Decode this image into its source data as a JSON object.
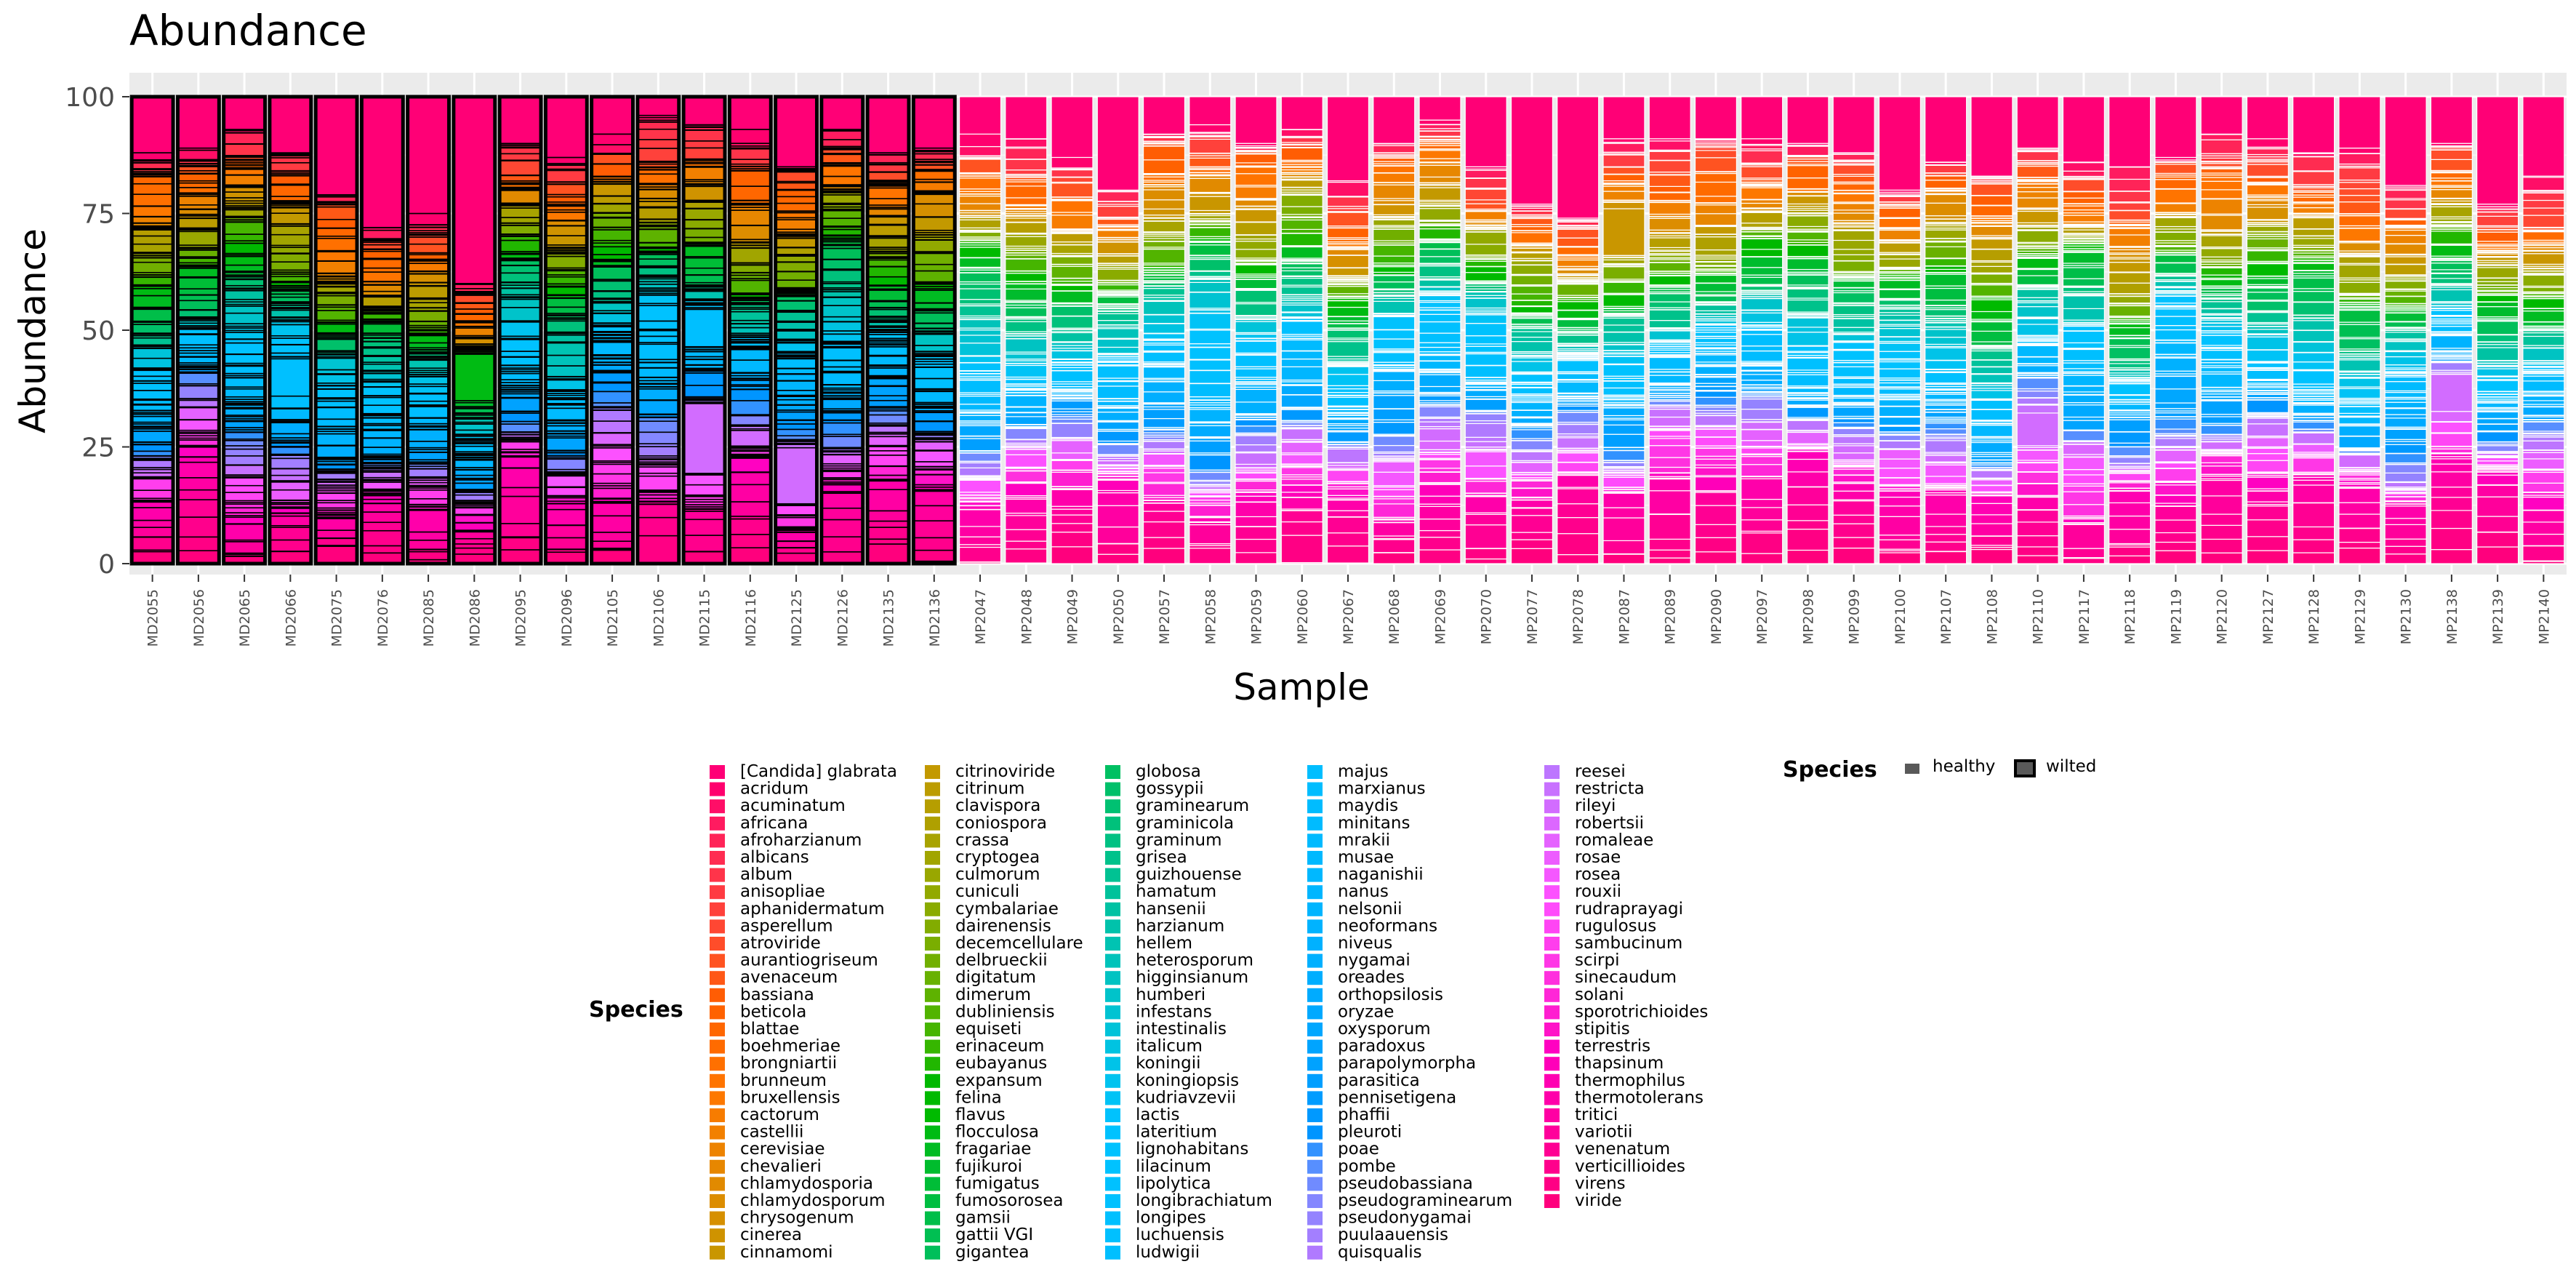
{
  "chart_data": {
    "type": "bar",
    "stacked": true,
    "title": "Abundance",
    "xlabel": "Sample",
    "ylabel": "Abundance",
    "ylim": [
      0,
      100
    ],
    "yticks": [
      0,
      25,
      50,
      75,
      100
    ],
    "grid": true,
    "legend_placement": "bottom",
    "categories": [
      "MD2055",
      "MD2056",
      "MD2065",
      "MD2066",
      "MD2075",
      "MD2076",
      "MD2085",
      "MD2086",
      "MD2095",
      "MD2096",
      "MD2105",
      "MD2106",
      "MD2115",
      "MD2116",
      "MD2125",
      "MD2126",
      "MD2135",
      "MD2136",
      "MP2047",
      "MP2048",
      "MP2049",
      "MP2050",
      "MP2057",
      "MP2058",
      "MP2059",
      "MP2060",
      "MP2067",
      "MP2068",
      "MP2069",
      "MP2070",
      "MP2077",
      "MP2078",
      "MP2087",
      "MP2089",
      "MP2090",
      "MP2097",
      "MP2098",
      "MP2099",
      "MP2100",
      "MP2107",
      "MP2108",
      "MP2110",
      "MP2117",
      "MP2118",
      "MP2119",
      "MP2120",
      "MP2127",
      "MP2128",
      "MP2129",
      "MP2130",
      "MP2138",
      "MP2139",
      "MP2140"
    ],
    "status": [
      "wilted",
      "wilted",
      "wilted",
      "wilted",
      "wilted",
      "wilted",
      "wilted",
      "wilted",
      "wilted",
      "wilted",
      "wilted",
      "wilted",
      "wilted",
      "wilted",
      "wilted",
      "wilted",
      "wilted",
      "wilted",
      "healthy",
      "healthy",
      "healthy",
      "healthy",
      "healthy",
      "healthy",
      "healthy",
      "healthy",
      "healthy",
      "healthy",
      "healthy",
      "healthy",
      "healthy",
      "healthy",
      "healthy",
      "healthy",
      "healthy",
      "healthy",
      "healthy",
      "healthy",
      "healthy",
      "healthy",
      "healthy",
      "healthy",
      "healthy",
      "healthy",
      "healthy",
      "healthy",
      "healthy",
      "healthy",
      "healthy",
      "healthy",
      "healthy",
      "healthy",
      "healthy"
    ],
    "top_species": "[Candida] glabrata",
    "top_species_values": [
      12,
      11,
      7,
      12,
      21,
      28,
      25,
      40,
      10,
      13,
      8,
      4,
      6,
      7,
      15,
      7,
      12,
      11,
      8,
      9,
      13,
      20,
      8,
      6,
      10,
      7,
      18,
      10,
      5,
      15,
      23,
      26,
      9,
      9,
      9,
      9,
      10,
      12,
      20,
      14,
      17,
      11,
      14,
      15,
      13,
      8,
      9,
      12,
      11,
      19,
      10,
      23,
      17
    ],
    "notable_blocks": [
      {
        "sample": "MD2086",
        "species": "flocculosa",
        "value": 10
      },
      {
        "sample": "MD2115",
        "species": "ludwigii",
        "value": 8
      },
      {
        "sample": "MD2115",
        "species": "rileyi",
        "value": 15
      },
      {
        "sample": "MD2125",
        "species": "rileyi",
        "value": 12
      },
      {
        "sample": "MD2066",
        "species": "luchuensis",
        "value": 8
      },
      {
        "sample": "MP2087",
        "species": "cinnamomi",
        "value": 10
      },
      {
        "sample": "MP2110",
        "species": "rileyi",
        "value": 7
      },
      {
        "sample": "MP2138",
        "species": "rileyi",
        "value": 8
      }
    ],
    "species": [
      "[Candida] glabrata",
      "acridum",
      "acuminatum",
      "africana",
      "afroharzianum",
      "albicans",
      "album",
      "anisopliae",
      "aphanidermatum",
      "asperellum",
      "atroviride",
      "aurantiogriseum",
      "avenaceum",
      "bassiana",
      "beticola",
      "blattae",
      "boehmeriae",
      "brongniartii",
      "brunneum",
      "bruxellensis",
      "cactorum",
      "castellii",
      "cerevisiae",
      "chevalieri",
      "chlamydosporia",
      "chlamydosporum",
      "chrysogenum",
      "cinerea",
      "cinnamomi",
      "citrinoviride",
      "citrinum",
      "clavispora",
      "coniospora",
      "crassa",
      "cryptogea",
      "culmorum",
      "cuniculi",
      "cymbalariae",
      "dairenensis",
      "decemcellulare",
      "delbrueckii",
      "digitatum",
      "dimerum",
      "dubliniensis",
      "equiseti",
      "erinaceum",
      "eubayanus",
      "expansum",
      "felina",
      "flavus",
      "flocculosa",
      "fragariae",
      "fujikuroi",
      "fumigatus",
      "fumosorosea",
      "gamsii",
      "gattii VGI",
      "gigantea",
      "globosa",
      "gossypii",
      "graminearum",
      "graminicola",
      "graminum",
      "grisea",
      "guizhouense",
      "hamatum",
      "hansenii",
      "harzianum",
      "hellem",
      "heterosporum",
      "higginsianum",
      "humberi",
      "infestans",
      "intestinalis",
      "italicum",
      "koningii",
      "koningiopsis",
      "kudriavzevii",
      "lactis",
      "lateritium",
      "lignohabitans",
      "lilacinum",
      "lipolytica",
      "longibrachiatum",
      "longipes",
      "luchuensis",
      "ludwigii",
      "majus",
      "marxianus",
      "maydis",
      "minitans",
      "mrakii",
      "musae",
      "naganishii",
      "nanus",
      "nelsonii",
      "neoformans",
      "niveus",
      "nygamai",
      "oreades",
      "orthopsilosis",
      "oryzae",
      "oxysporum",
      "paradoxus",
      "parapolymorpha",
      "parasitica",
      "pennisetigena",
      "phaffii",
      "pleuroti",
      "poae",
      "pombe",
      "pseudobassiana",
      "pseudograminearum",
      "pseudonygamai",
      "puulaauensis",
      "quisqualis",
      "reesei",
      "restricta",
      "rileyi",
      "robertsii",
      "romaleae",
      "rosae",
      "rosea",
      "rouxii",
      "rudraprayagi",
      "rugulosus",
      "sambucinum",
      "scirpi",
      "sinecaudum",
      "solani",
      "sporotrichioides",
      "stipitis",
      "terrestris",
      "thapsinum",
      "thermophilus",
      "thermotolerans",
      "tritici",
      "variotii",
      "venenatum",
      "verticillioides",
      "virens",
      "viride"
    ]
  },
  "legend": {
    "fill_title": "Species",
    "outline_title": "Species",
    "outline_items": [
      "healthy",
      "wilted"
    ]
  }
}
